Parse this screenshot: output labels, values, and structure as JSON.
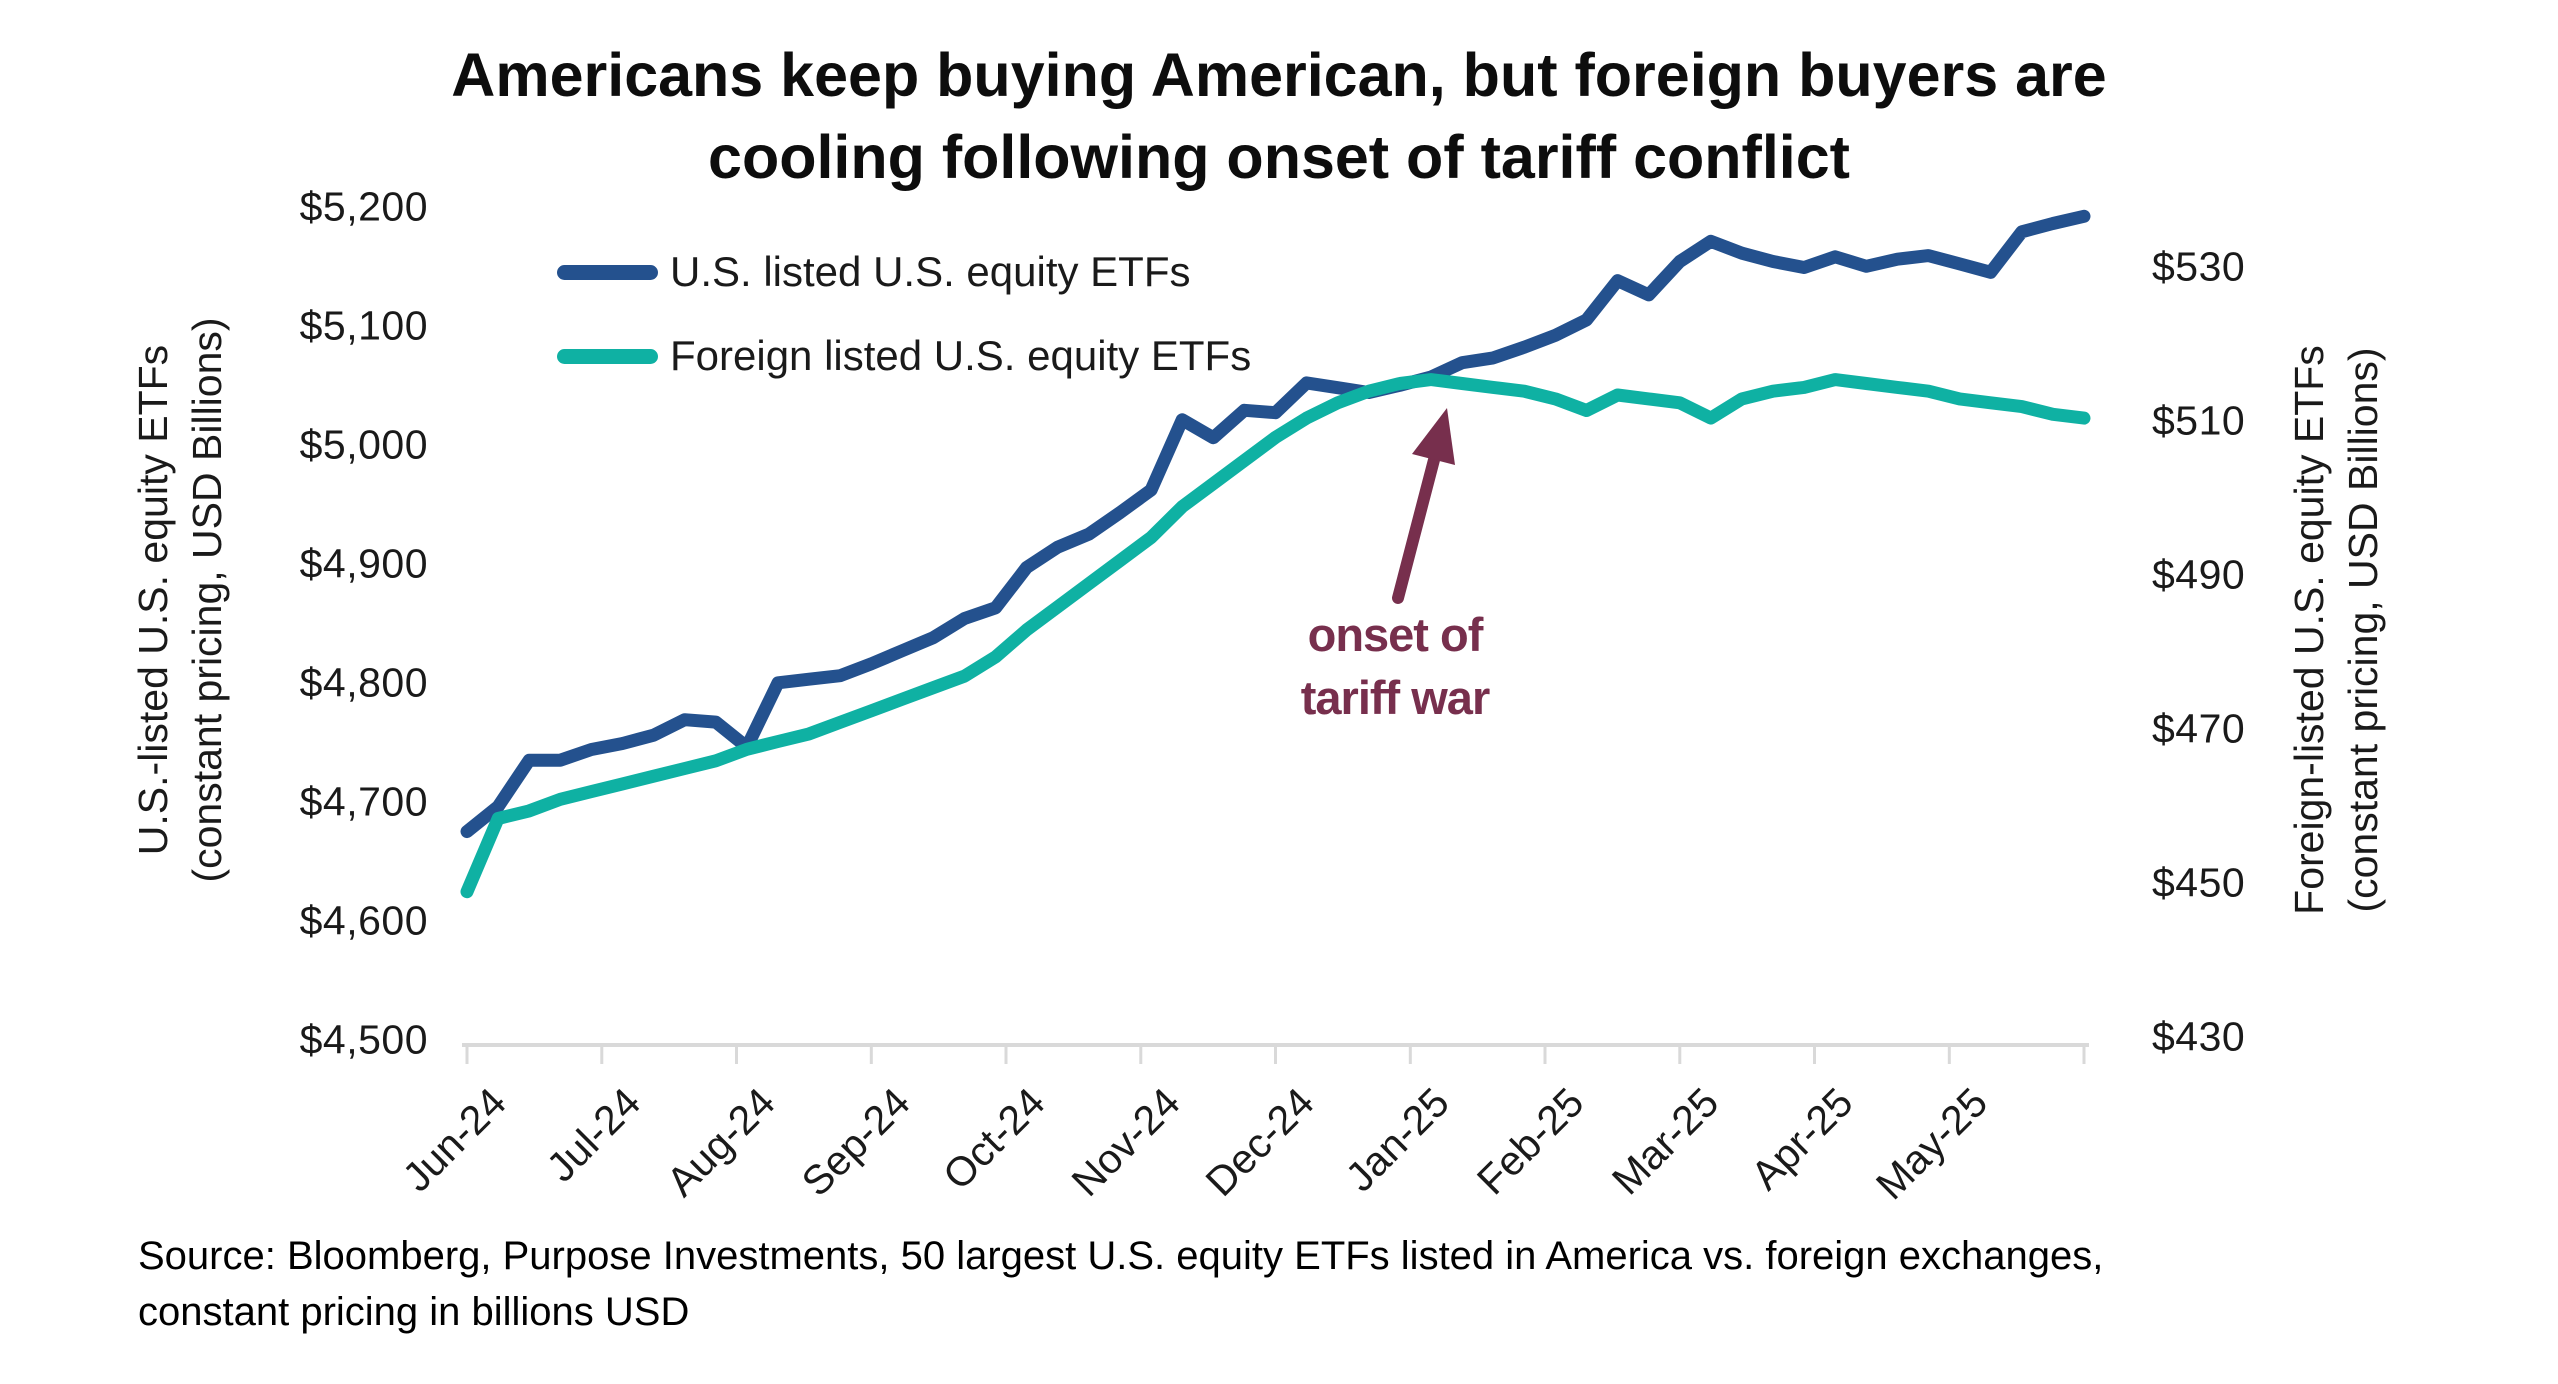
{
  "title": {
    "line1": "Americans keep buying American, but foreign buyers are",
    "line2": "cooling following onset of tariff conflict"
  },
  "legend": [
    {
      "label": "U.S. listed U.S. equity ETFs",
      "color": "#24518e"
    },
    {
      "label": "Foreign listed U.S. equity ETFs",
      "color": "#0fb1a3"
    }
  ],
  "left_axis": {
    "title_line1": "U.S.-listed U.S. equity ETFs",
    "title_line2": "(constant pricing, USD Billions)",
    "ticks": [
      {
        "label": "$5,200",
        "value": 5200
      },
      {
        "label": "$5,100",
        "value": 5100
      },
      {
        "label": "$5,000",
        "value": 5000
      },
      {
        "label": "$4,900",
        "value": 4900
      },
      {
        "label": "$4,800",
        "value": 4800
      },
      {
        "label": "$4,700",
        "value": 4700
      },
      {
        "label": "$4,600",
        "value": 4600
      },
      {
        "label": "$4,500",
        "value": 4500
      }
    ]
  },
  "right_axis": {
    "title_line1": "Foreign-listed U.S. equity ETFs",
    "title_line2": "(constant pricing, USD Billions)",
    "ticks": [
      {
        "label": "$530",
        "value": 530
      },
      {
        "label": "$510",
        "value": 510
      },
      {
        "label": "$490",
        "value": 490
      },
      {
        "label": "$470",
        "value": 470
      },
      {
        "label": "$450",
        "value": 450
      },
      {
        "label": "$430",
        "value": 430
      }
    ]
  },
  "x_axis": {
    "labels": [
      "Jun-24",
      "Jul-24",
      "Aug-24",
      "Sep-24",
      "Oct-24",
      "Nov-24",
      "Dec-24",
      "Jan-25",
      "Feb-25",
      "Mar-25",
      "Apr-25",
      "May-25"
    ]
  },
  "annotation": {
    "line1": "onset of",
    "line2": "tariff war",
    "color": "#772f4d"
  },
  "source": {
    "line1": "Source: Bloomberg, Purpose Investments, 50 largest U.S. equity ETFs listed in America vs. foreign exchanges,",
    "line2": "constant pricing in billions USD"
  },
  "chart_data": {
    "type": "line",
    "title": "Americans keep buying American, but foreign buyers are cooling following onset of tariff conflict",
    "x_description": "weekly observations from Jun-24 through May-25 (53 points)",
    "x_tick_labels": [
      "Jun-24",
      "Jul-24",
      "Aug-24",
      "Sep-24",
      "Oct-24",
      "Nov-24",
      "Dec-24",
      "Jan-25",
      "Feb-25",
      "Mar-25",
      "Apr-25",
      "May-25"
    ],
    "grid": false,
    "legend_position": "top-left-inside",
    "left_axis_label": "U.S.-listed U.S. equity ETFs (constant pricing, USD Billions)",
    "right_axis_label": "Foreign-listed U.S. equity ETFs (constant pricing, USD Billions)",
    "left_axis_range": [
      4500,
      5200
    ],
    "right_axis_range": [
      430,
      530
    ],
    "annotation": {
      "text": "onset of tariff war",
      "points_to": "teal line near Jan-25/Feb-25 boundary"
    },
    "series": [
      {
        "name": "U.S. listed U.S. equity ETFs",
        "axis": "left",
        "color": "#24518e",
        "values": [
          4676,
          4697,
          4736,
          4736,
          4745,
          4750,
          4757,
          4770,
          4768,
          4747,
          4801,
          4804,
          4807,
          4817,
          4828,
          4839,
          4855,
          4864,
          4898,
          4915,
          4926,
          4944,
          4963,
          5022,
          5007,
          5030,
          5028,
          5053,
          5049,
          5045,
          5051,
          5058,
          5070,
          5074,
          5083,
          5093,
          5106,
          5139,
          5127,
          5155,
          5172,
          5162,
          5155,
          5150,
          5159,
          5151,
          5157,
          5160,
          5153,
          5146,
          5180,
          5187,
          5193
        ]
      },
      {
        "name": "Foreign listed U.S. equity ETFs",
        "axis": "right",
        "color": "#0fb1a3",
        "values": [
          449,
          458.5,
          459.5,
          461,
          462,
          463,
          464,
          465,
          466,
          467.5,
          468.5,
          469.5,
          471,
          472.5,
          474,
          475.5,
          477,
          479.5,
          483,
          486,
          489,
          492,
          495,
          499,
          502,
          505,
          508,
          510.5,
          512.5,
          514,
          515,
          515.5,
          515,
          514.5,
          514,
          513,
          511.5,
          513.5,
          513,
          512.5,
          510.5,
          513,
          514,
          514.5,
          515.5,
          515,
          514.5,
          514,
          513,
          512.5,
          512,
          511,
          510.5
        ]
      }
    ]
  }
}
